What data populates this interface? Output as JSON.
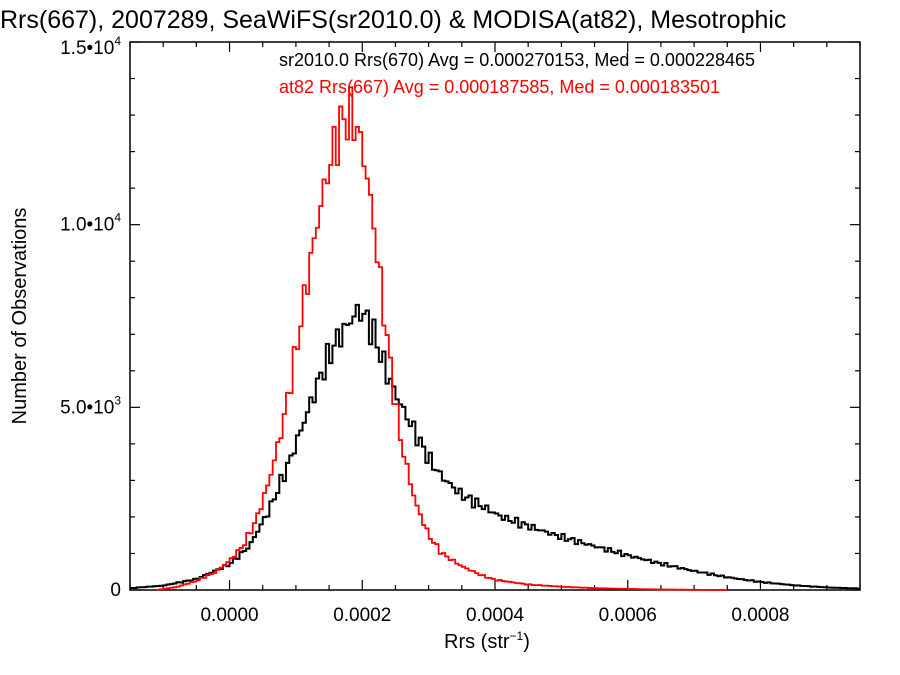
{
  "chart_data": {
    "type": "line",
    "title": "Rrs(667), 2007289, SeaWiFS(sr2010.0) & MODISA(at82), Mesotrophic",
    "xlabel": {
      "main": "Rrs (str",
      "sup": "−1",
      "close": ")"
    },
    "ylabel": "Number of Observations",
    "xlim": [
      -0.00015,
      0.00095
    ],
    "ylim": [
      0,
      15000
    ],
    "x_ticks": [
      {
        "value": 0.0,
        "label": "0.0000"
      },
      {
        "value": 0.0002,
        "label": "0.0002"
      },
      {
        "value": 0.0004,
        "label": "0.0004"
      },
      {
        "value": 0.0006,
        "label": "0.0006"
      },
      {
        "value": 0.0008,
        "label": "0.0008"
      }
    ],
    "y_ticks": [
      {
        "value": 0,
        "label": "0",
        "sup": ""
      },
      {
        "value": 5000,
        "label": "5.0•10",
        "sup": "3"
      },
      {
        "value": 10000,
        "label": "1.0•10",
        "sup": "4"
      },
      {
        "value": 15000,
        "label": "1.5•10",
        "sup": "4"
      }
    ],
    "legend": [
      {
        "text": "sr2010.0 Rrs(670) Avg = 0.000270153, Med = 0.000228465",
        "color": "#000000"
      },
      {
        "text": "at82 Rrs(667) Avg = 0.000187585, Med = 0.000183501",
        "color": "#ff0000"
      }
    ],
    "series": [
      {
        "name": "sr2010.0 Rrs(670)",
        "color": "#000000",
        "x": [
          -0.00015,
          -0.0001,
          -5e-05,
          0.0,
          3e-05,
          6e-05,
          9e-05,
          0.00012,
          0.00014,
          0.00016,
          0.00018,
          0.00019,
          0.0002,
          0.00021,
          0.00022,
          0.00023,
          0.00024,
          0.00026,
          0.00028,
          0.0003,
          0.00032,
          0.00035,
          0.00038,
          0.00041,
          0.00045,
          0.0005,
          0.00055,
          0.0006,
          0.00065,
          0.0007,
          0.00075,
          0.0008,
          0.00085,
          0.0009,
          0.00095
        ],
        "y": [
          50,
          120,
          300,
          700,
          1200,
          2200,
          3500,
          5000,
          6000,
          6800,
          7300,
          7600,
          7600,
          7300,
          6900,
          6300,
          5800,
          5000,
          4300,
          3600,
          3100,
          2600,
          2300,
          2000,
          1750,
          1450,
          1200,
          950,
          720,
          520,
          350,
          220,
          130,
          70,
          40
        ]
      },
      {
        "name": "at82 Rrs(667)",
        "color": "#ff0000",
        "x": [
          -0.00011,
          -8e-05,
          -5e-05,
          -2e-05,
          0.0,
          2e-05,
          4e-05,
          6e-05,
          8e-05,
          0.0001,
          0.00012,
          0.00014,
          0.00016,
          0.00017,
          0.00018,
          0.00019,
          0.0002,
          0.00021,
          0.00022,
          0.00023,
          0.00024,
          0.00025,
          0.00026,
          0.00028,
          0.0003,
          0.00032,
          0.00035,
          0.00038,
          0.0004,
          0.00045,
          0.0005,
          0.00055,
          0.0006,
          0.00065,
          0.0007,
          0.00075
        ],
        "y": [
          0,
          80,
          250,
          500,
          800,
          1200,
          1900,
          3000,
          4500,
          6500,
          8800,
          10800,
          12300,
          12800,
          13000,
          12800,
          12100,
          11000,
          9600,
          8000,
          6500,
          5100,
          3900,
          2400,
          1500,
          1000,
          650,
          400,
          280,
          150,
          90,
          50,
          30,
          15,
          5,
          0
        ]
      }
    ]
  }
}
